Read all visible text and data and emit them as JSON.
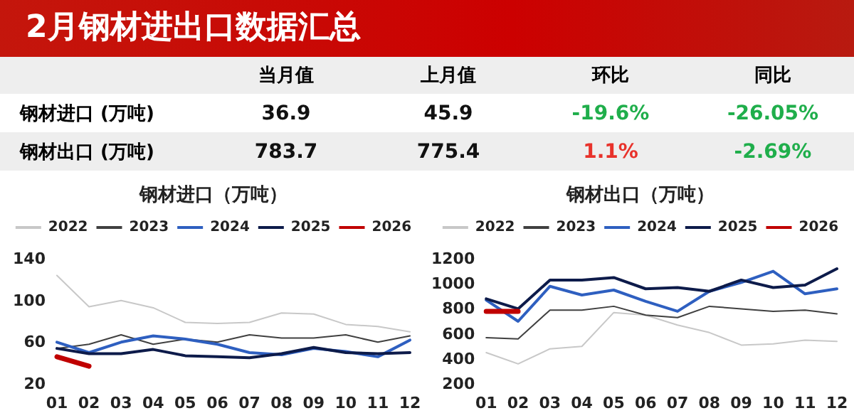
{
  "chart_data": [
    {
      "type": "other",
      "title": "2月钢材进出口数据汇总",
      "categories": [
        null,
        "当月值",
        "上月值",
        "环比",
        "同比"
      ],
      "y_categories": [
        "钢材进口 (万吨)",
        "钢材出口 (万吨)"
      ],
      "cell_labels": [
        [
          "36.9",
          "45.9",
          "-19.6%",
          "-26.05%"
        ],
        [
          "783.7",
          "775.4",
          "1.1%",
          "-2.69%"
        ]
      ],
      "colors": [
        [
          null,
          null,
          "#1fae4b",
          "#1fae4b"
        ],
        [
          null,
          null,
          "#e8322b",
          "#1fae4b"
        ]
      ]
    },
    {
      "type": "line",
      "title": "钢材进口（万吨）",
      "categories": [
        "01",
        "02",
        "03",
        "04",
        "05",
        "06",
        "07",
        "08",
        "09",
        "10",
        "11",
        "12"
      ],
      "ylim": [
        20,
        140
      ],
      "yticks": [
        20,
        60,
        100,
        140
      ],
      "grid": false,
      "legend": "top",
      "marker": "none",
      "line_style": "solid",
      "series": [
        {
          "name": "2022",
          "color": "#c8c8c8",
          "values": [
            124,
            94,
            100,
            93,
            79,
            78,
            79,
            88,
            87,
            77,
            75,
            70
          ]
        },
        {
          "name": "2023",
          "color": "#404040",
          "values": [
            54,
            58,
            67,
            58,
            63,
            60,
            67,
            64,
            64,
            67,
            60,
            66
          ]
        },
        {
          "name": "2024",
          "color": "#2e5fc0",
          "values": [
            60,
            50,
            60,
            66,
            63,
            58,
            50,
            48,
            54,
            51,
            46,
            62
          ]
        },
        {
          "name": "2025",
          "color": "#0d1b4a",
          "values": [
            54,
            49,
            49,
            53,
            47,
            46,
            45,
            49,
            55,
            50,
            49,
            50
          ]
        },
        {
          "name": "2026",
          "color": "#c00000",
          "values": [
            46,
            37,
            null,
            null,
            null,
            null,
            null,
            null,
            null,
            null,
            null,
            null
          ]
        }
      ]
    },
    {
      "type": "line",
      "title": "钢材出口（万吨）",
      "categories": [
        "01",
        "02",
        "03",
        "04",
        "05",
        "06",
        "07",
        "08",
        "09",
        "10",
        "11",
        "12"
      ],
      "ylim": [
        200,
        1200
      ],
      "yticks": [
        200,
        400,
        600,
        800,
        1000,
        1200
      ],
      "grid": false,
      "legend": "top",
      "marker": "none",
      "line_style": "solid",
      "series": [
        {
          "name": "2022",
          "color": "#c8c8c8",
          "values": [
            450,
            360,
            480,
            500,
            770,
            750,
            670,
            610,
            510,
            520,
            550,
            540
          ]
        },
        {
          "name": "2023",
          "color": "#404040",
          "values": [
            570,
            560,
            790,
            790,
            820,
            750,
            730,
            820,
            800,
            780,
            790,
            760
          ]
        },
        {
          "name": "2024",
          "color": "#2e5fc0",
          "values": [
            870,
            700,
            980,
            910,
            950,
            860,
            780,
            940,
            1010,
            1100,
            920,
            960
          ]
        },
        {
          "name": "2025",
          "color": "#0d1b4a",
          "values": [
            880,
            800,
            1030,
            1030,
            1050,
            960,
            970,
            940,
            1030,
            970,
            990,
            1120
          ]
        },
        {
          "name": "2026",
          "color": "#c00000",
          "values": [
            780,
            780,
            null,
            null,
            null,
            null,
            null,
            null,
            null,
            null,
            null,
            null
          ]
        }
      ]
    }
  ]
}
